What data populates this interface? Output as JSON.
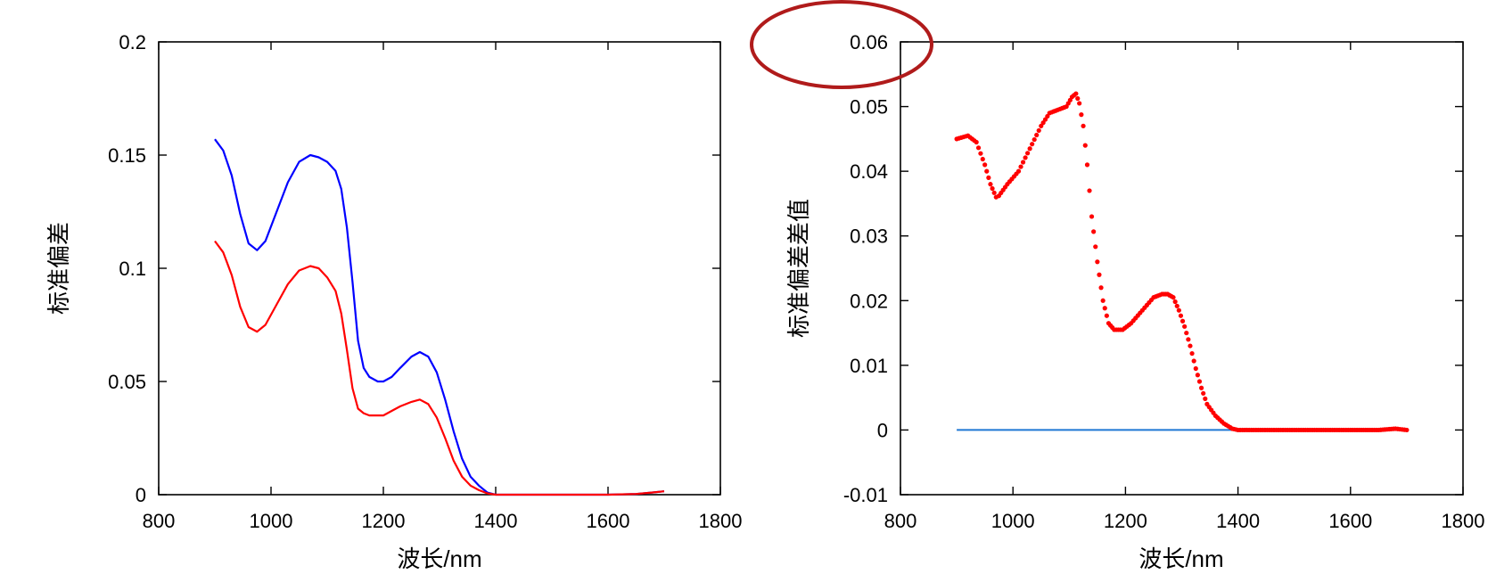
{
  "chart_data": [
    {
      "type": "line",
      "title": "",
      "xlabel": "波长/nm",
      "ylabel": "标准偏差",
      "xlim": [
        800,
        1800
      ],
      "ylim": [
        0,
        0.2
      ],
      "xticks": [
        "800",
        "1000",
        "1200",
        "1400",
        "1600",
        "1800"
      ],
      "yticks": [
        "0",
        "0.05",
        "0.1",
        "0.15",
        "0.2"
      ],
      "grid": false,
      "series": [
        {
          "color": "#0000ff",
          "x": [
            900,
            915,
            930,
            945,
            960,
            975,
            990,
            1010,
            1030,
            1050,
            1070,
            1085,
            1100,
            1115,
            1125,
            1135,
            1145,
            1155,
            1165,
            1175,
            1190,
            1200,
            1215,
            1230,
            1250,
            1265,
            1280,
            1295,
            1310,
            1325,
            1340,
            1355,
            1370,
            1385,
            1395,
            1400,
            1450,
            1500,
            1550,
            1600,
            1650,
            1680,
            1700
          ],
          "y": [
            0.157,
            0.152,
            0.141,
            0.124,
            0.111,
            0.108,
            0.112,
            0.125,
            0.138,
            0.147,
            0.15,
            0.149,
            0.147,
            0.143,
            0.135,
            0.118,
            0.094,
            0.068,
            0.056,
            0.052,
            0.05,
            0.05,
            0.052,
            0.056,
            0.061,
            0.063,
            0.061,
            0.054,
            0.042,
            0.028,
            0.016,
            0.008,
            0.004,
            0.001,
            0.0003,
            0.0,
            0.0,
            0.0,
            0.0,
            0.0,
            0.0003,
            0.001,
            0.0015
          ]
        },
        {
          "color": "#ff0000",
          "x": [
            900,
            915,
            930,
            945,
            960,
            975,
            990,
            1010,
            1030,
            1050,
            1070,
            1085,
            1100,
            1115,
            1125,
            1135,
            1145,
            1155,
            1165,
            1175,
            1190,
            1200,
            1215,
            1230,
            1250,
            1265,
            1280,
            1295,
            1310,
            1325,
            1340,
            1355,
            1370,
            1385,
            1395,
            1400,
            1450,
            1500,
            1550,
            1600,
            1650,
            1680,
            1700
          ],
          "y": [
            0.112,
            0.107,
            0.097,
            0.083,
            0.074,
            0.072,
            0.075,
            0.084,
            0.093,
            0.099,
            0.101,
            0.1,
            0.096,
            0.09,
            0.08,
            0.064,
            0.047,
            0.038,
            0.036,
            0.035,
            0.035,
            0.035,
            0.037,
            0.039,
            0.041,
            0.042,
            0.04,
            0.034,
            0.025,
            0.015,
            0.008,
            0.004,
            0.002,
            0.0006,
            0.0002,
            0.0,
            0.0,
            0.0,
            0.0,
            0.0,
            0.0003,
            0.001,
            0.0015
          ]
        }
      ]
    },
    {
      "type": "scatter",
      "title": "",
      "xlabel": "波长/nm",
      "ylabel": "标准偏差差值",
      "xlim": [
        800,
        1800
      ],
      "ylim": [
        -0.01,
        0.06
      ],
      "xticks": [
        "800",
        "1000",
        "1200",
        "1400",
        "1600",
        "1800"
      ],
      "yticks": [
        "-0.01",
        "0",
        "0.01",
        "0.02",
        "0.03",
        "0.04",
        "0.05",
        "0.06"
      ],
      "grid": false,
      "reference_line": {
        "y": 0,
        "x_range": [
          900,
          1390
        ],
        "color": "#1f77d4"
      },
      "series": [
        {
          "color": "#ff0000",
          "x": [
            900,
            920,
            935,
            950,
            960,
            970,
            975,
            990,
            1010,
            1030,
            1050,
            1065,
            1080,
            1095,
            1105,
            1112,
            1118,
            1125,
            1132,
            1140,
            1150,
            1160,
            1170,
            1180,
            1195,
            1210,
            1230,
            1250,
            1265,
            1275,
            1285,
            1295,
            1305,
            1315,
            1325,
            1335,
            1345,
            1360,
            1375,
            1390,
            1400,
            1500,
            1600,
            1650,
            1680,
            1700
          ],
          "y": [
            0.045,
            0.0455,
            0.0445,
            0.041,
            0.038,
            0.036,
            0.0362,
            0.038,
            0.04,
            0.0435,
            0.047,
            0.049,
            0.0495,
            0.05,
            0.0515,
            0.052,
            0.0505,
            0.047,
            0.041,
            0.033,
            0.026,
            0.02,
            0.0165,
            0.0155,
            0.0155,
            0.0165,
            0.0185,
            0.0205,
            0.021,
            0.021,
            0.0205,
            0.0185,
            0.016,
            0.013,
            0.0095,
            0.0065,
            0.004,
            0.0022,
            0.001,
            0.0002,
            0.0,
            0.0,
            0.0,
            0.0,
            0.0002,
            0.0
          ]
        }
      ]
    }
  ]
}
